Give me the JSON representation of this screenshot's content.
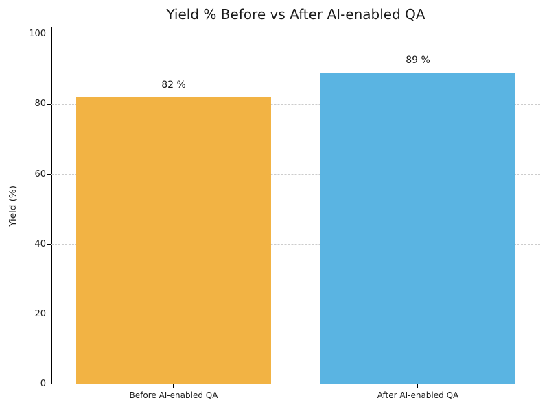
{
  "figure": {
    "background": "#FFFFFF"
  },
  "chart_data": {
    "type": "bar",
    "title": "Yield % Before vs After AI-enabled QA",
    "xlabel": "",
    "ylabel": "Yield (%)",
    "categories": [
      "Before AI-enabled QA",
      "After AI-enabled QA"
    ],
    "values": [
      82,
      89
    ],
    "value_labels": [
      "82 %",
      "89 %"
    ],
    "bar_colors": [
      "#F2B344",
      "#5AB4E2"
    ],
    "yticks": [
      0,
      20,
      40,
      60,
      80,
      100
    ],
    "ylim": [
      0,
      102
    ],
    "grid": {
      "axis": "y",
      "style": "dashed",
      "color": "#CCCCCC"
    },
    "legend": "none",
    "axis_color": "#000000",
    "text_color": "#1A1A1A"
  }
}
